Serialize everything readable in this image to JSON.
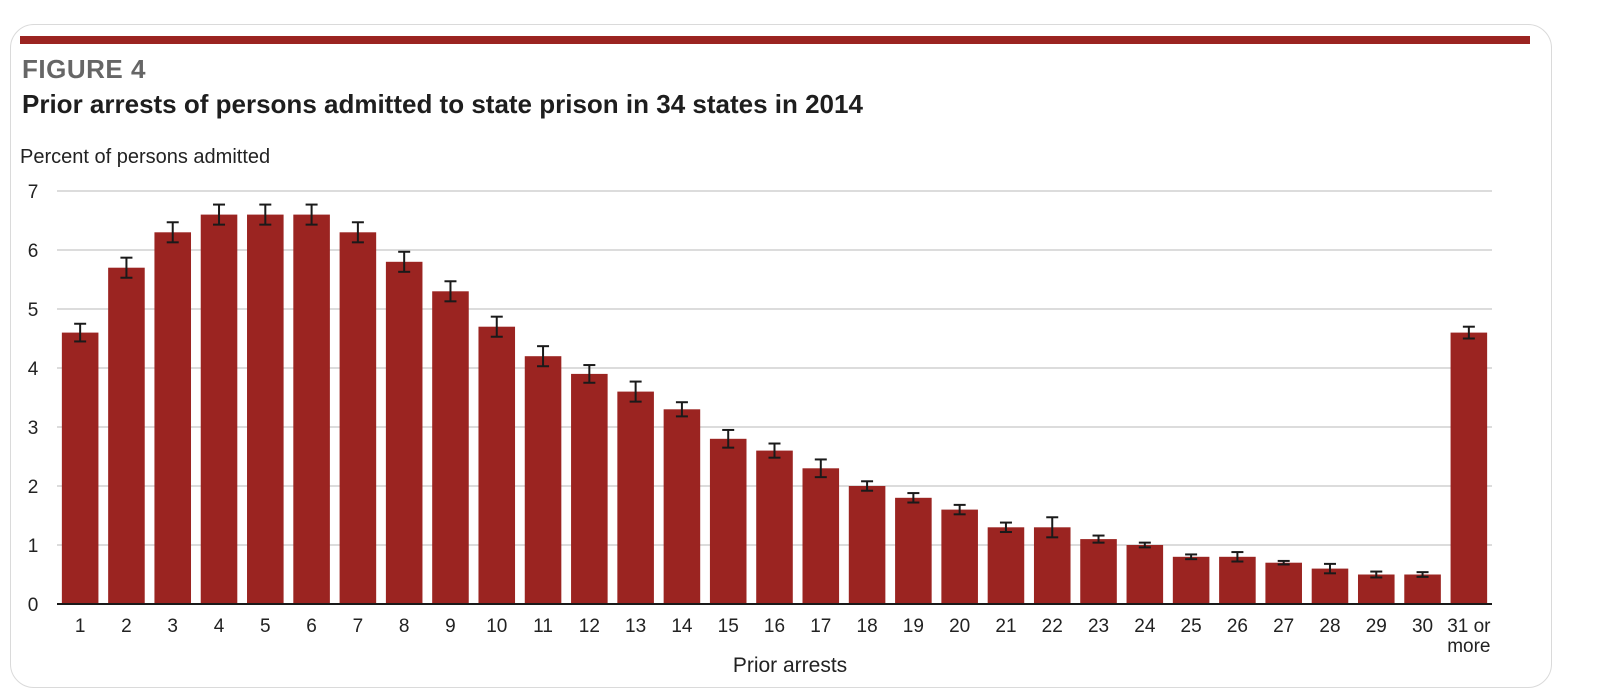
{
  "figure": {
    "label": "FIGURE 4",
    "title": "Prior arrests of persons admitted to state prison in 34 states in 2014"
  },
  "chart_data": {
    "type": "bar",
    "title": "Prior arrests of persons admitted to state prison in 34 states in 2014",
    "ylabel": "Percent of persons admitted",
    "xlabel": "Prior arrests",
    "ylim": [
      0,
      7
    ],
    "yticks": [
      0,
      1,
      2,
      3,
      4,
      5,
      6,
      7
    ],
    "grid": true,
    "bar_color": "#9b2421",
    "categories": [
      "1",
      "2",
      "3",
      "4",
      "5",
      "6",
      "7",
      "8",
      "9",
      "10",
      "11",
      "12",
      "13",
      "14",
      "15",
      "16",
      "17",
      "18",
      "19",
      "20",
      "21",
      "22",
      "23",
      "24",
      "25",
      "26",
      "27",
      "28",
      "29",
      "30",
      "31 or more"
    ],
    "category_lines": [
      [
        "1"
      ],
      [
        "2"
      ],
      [
        "3"
      ],
      [
        "4"
      ],
      [
        "5"
      ],
      [
        "6"
      ],
      [
        "7"
      ],
      [
        "8"
      ],
      [
        "9"
      ],
      [
        "10"
      ],
      [
        "11"
      ],
      [
        "12"
      ],
      [
        "13"
      ],
      [
        "14"
      ],
      [
        "15"
      ],
      [
        "16"
      ],
      [
        "17"
      ],
      [
        "18"
      ],
      [
        "19"
      ],
      [
        "20"
      ],
      [
        "21"
      ],
      [
        "22"
      ],
      [
        "23"
      ],
      [
        "24"
      ],
      [
        "25"
      ],
      [
        "26"
      ],
      [
        "27"
      ],
      [
        "28"
      ],
      [
        "29"
      ],
      [
        "30"
      ],
      [
        "31 or",
        "more"
      ]
    ],
    "values": [
      4.6,
      5.7,
      6.3,
      6.6,
      6.6,
      6.6,
      6.3,
      5.8,
      5.3,
      4.7,
      4.2,
      3.9,
      3.6,
      3.3,
      2.8,
      2.6,
      2.3,
      2.0,
      1.8,
      1.6,
      1.3,
      1.3,
      1.1,
      1.0,
      0.8,
      0.8,
      0.7,
      0.6,
      0.5,
      0.5,
      4.6
    ],
    "errors": [
      0.15,
      0.17,
      0.17,
      0.17,
      0.17,
      0.17,
      0.17,
      0.17,
      0.17,
      0.17,
      0.17,
      0.15,
      0.17,
      0.12,
      0.15,
      0.12,
      0.15,
      0.08,
      0.08,
      0.08,
      0.08,
      0.17,
      0.06,
      0.04,
      0.04,
      0.08,
      0.03,
      0.08,
      0.05,
      0.04,
      0.1
    ]
  }
}
